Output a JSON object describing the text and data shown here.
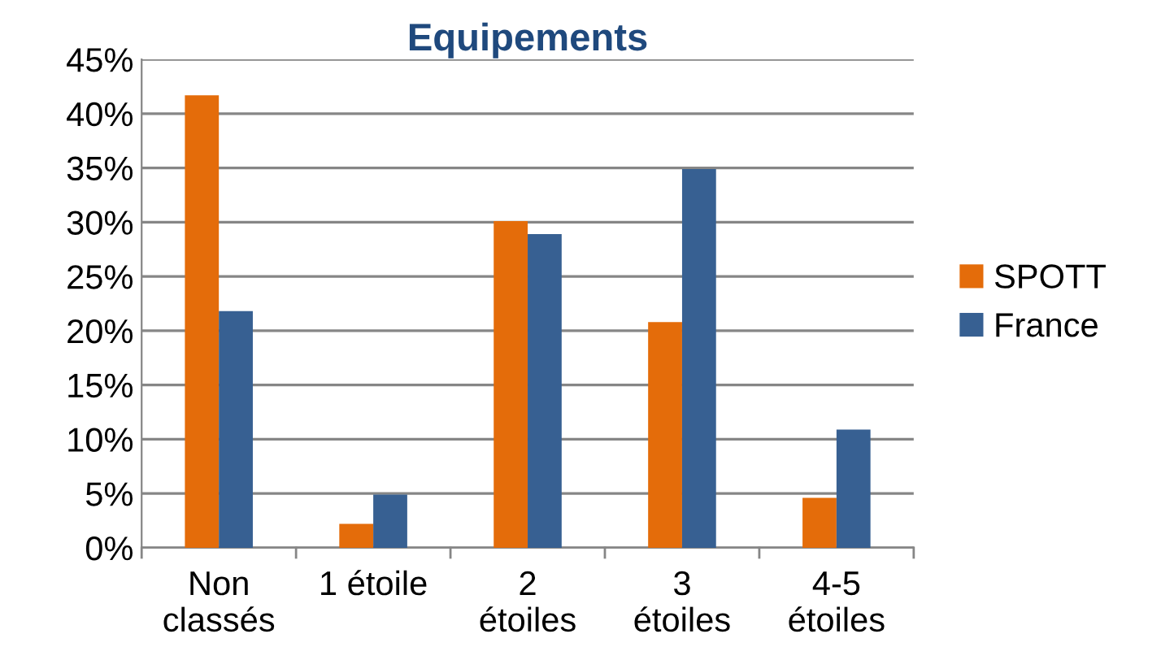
{
  "chart_data": {
    "type": "bar",
    "title": "Equipements",
    "categories": [
      "Non\nclassés",
      "1 étoile",
      "2\nétoiles",
      "3\nétoiles",
      "4-5\nétoiles"
    ],
    "series": [
      {
        "name": "SPOTT",
        "color": "#e46c0a",
        "values": [
          41.7,
          2.2,
          30.1,
          20.8,
          4.6
        ]
      },
      {
        "name": "France",
        "color": "#376092",
        "values": [
          21.8,
          4.9,
          28.9,
          34.9,
          10.9
        ]
      }
    ],
    "ylim": [
      0,
      45
    ],
    "yticks": [
      {
        "value": 0,
        "label": "0%"
      },
      {
        "value": 5,
        "label": "5%"
      },
      {
        "value": 10,
        "label": "10%"
      },
      {
        "value": 15,
        "label": "15%"
      },
      {
        "value": 20,
        "label": "20%"
      },
      {
        "value": 25,
        "label": "25%"
      },
      {
        "value": 30,
        "label": "30%"
      },
      {
        "value": 35,
        "label": "35%"
      },
      {
        "value": 40,
        "label": "40%"
      },
      {
        "value": 45,
        "label": "45%"
      }
    ],
    "grid": "y",
    "legend": "right"
  }
}
